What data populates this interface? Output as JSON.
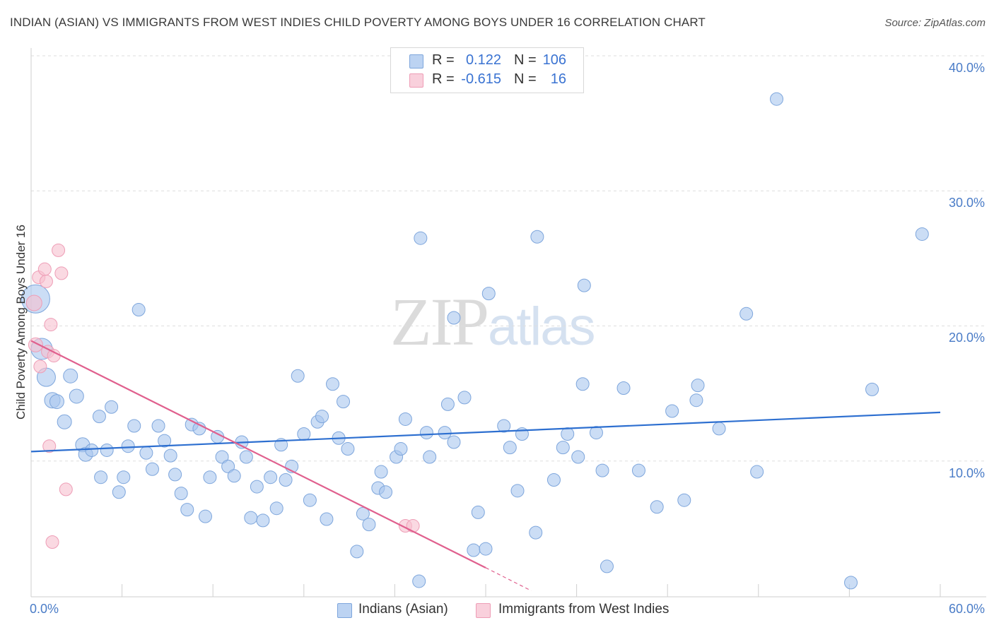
{
  "title": "INDIAN (ASIAN) VS IMMIGRANTS FROM WEST INDIES CHILD POVERTY AMONG BOYS UNDER 16 CORRELATION CHART",
  "source": "Source: ZipAtlas.com",
  "watermark": {
    "zip": "ZIP",
    "atlas": "atlas"
  },
  "colors": {
    "blue_fill": "#a8c6ee",
    "blue_stroke": "#7ea6dc",
    "blue_line": "#2d6fd0",
    "pink_fill": "#f6bfcf",
    "pink_stroke": "#ee9db6",
    "pink_line": "#e0608e",
    "grid": "#dedede",
    "tick_text": "#4a7cc7"
  },
  "legend": {
    "r_label": "R =",
    "n_label": "N =",
    "blue": {
      "r": "0.122",
      "n": "106"
    },
    "pink": {
      "r": "-0.615",
      "n": "16"
    }
  },
  "chart_data": {
    "type": "scatter",
    "title": "INDIAN (ASIAN) VS IMMIGRANTS FROM WEST INDIES CHILD POVERTY AMONG BOYS UNDER 16 CORRELATION CHART",
    "xlabel": "",
    "ylabel": "Child Poverty Among Boys Under 16",
    "xlim": [
      0,
      60
    ],
    "ylim": [
      0,
      40
    ],
    "x_tick_labels": [
      "0.0%",
      "60.0%"
    ],
    "y_ticks": [
      10,
      20,
      30,
      40
    ],
    "y_tick_labels": [
      "10.0%",
      "20.0%",
      "30.0%",
      "40.0%"
    ],
    "series": [
      {
        "name": "Indians (Asian)",
        "color": "#a8c6ee",
        "r": 0.122,
        "n": 106,
        "trend": {
          "x0": 0,
          "y0": 10.7,
          "x1": 60,
          "y1": 13.6
        },
        "points": [
          [
            0.3,
            22.0,
            20
          ],
          [
            0.7,
            18.3,
            15
          ],
          [
            1.0,
            16.2,
            13
          ],
          [
            1.4,
            14.5,
            11
          ],
          [
            1.7,
            14.4,
            10
          ],
          [
            2.2,
            12.9,
            10
          ],
          [
            2.6,
            16.3,
            10
          ],
          [
            3.0,
            14.8,
            10
          ],
          [
            3.4,
            11.2,
            10
          ],
          [
            3.6,
            10.5,
            10
          ],
          [
            4.0,
            10.8,
            9
          ],
          [
            4.5,
            13.3,
            9
          ],
          [
            4.6,
            8.8,
            9
          ],
          [
            5.0,
            10.8,
            9
          ],
          [
            5.3,
            14.0,
            9
          ],
          [
            5.8,
            7.7,
            9
          ],
          [
            6.1,
            8.8,
            9
          ],
          [
            6.4,
            11.1,
            9
          ],
          [
            6.8,
            12.6,
            9
          ],
          [
            7.1,
            21.2,
            9
          ],
          [
            7.6,
            10.6,
            9
          ],
          [
            8.0,
            9.4,
            9
          ],
          [
            8.4,
            12.6,
            9
          ],
          [
            8.8,
            11.5,
            9
          ],
          [
            9.2,
            10.4,
            9
          ],
          [
            9.5,
            9.0,
            9
          ],
          [
            9.9,
            7.6,
            9
          ],
          [
            10.3,
            6.4,
            9
          ],
          [
            10.6,
            12.7,
            9
          ],
          [
            11.1,
            12.4,
            9
          ],
          [
            11.5,
            5.9,
            9
          ],
          [
            11.8,
            8.8,
            9
          ],
          [
            12.3,
            11.8,
            9
          ],
          [
            12.6,
            10.3,
            9
          ],
          [
            13.0,
            9.6,
            9
          ],
          [
            13.4,
            8.9,
            9
          ],
          [
            13.9,
            11.4,
            9
          ],
          [
            14.2,
            10.3,
            9
          ],
          [
            14.5,
            5.8,
            9
          ],
          [
            14.9,
            8.1,
            9
          ],
          [
            15.3,
            5.6,
            9
          ],
          [
            15.8,
            8.8,
            9
          ],
          [
            16.2,
            6.5,
            9
          ],
          [
            16.5,
            11.2,
            9
          ],
          [
            16.8,
            8.6,
            9
          ],
          [
            17.2,
            9.6,
            9
          ],
          [
            17.6,
            16.3,
            9
          ],
          [
            18.0,
            12.0,
            9
          ],
          [
            18.4,
            7.1,
            9
          ],
          [
            18.9,
            12.9,
            9
          ],
          [
            19.2,
            13.3,
            9
          ],
          [
            19.5,
            5.7,
            9
          ],
          [
            19.9,
            15.7,
            9
          ],
          [
            20.3,
            11.7,
            9
          ],
          [
            20.6,
            14.4,
            9
          ],
          [
            20.9,
            10.9,
            9
          ],
          [
            21.5,
            3.3,
            9
          ],
          [
            21.9,
            6.1,
            9
          ],
          [
            22.3,
            5.3,
            9
          ],
          [
            22.9,
            8.0,
            9
          ],
          [
            23.1,
            9.2,
            9
          ],
          [
            23.4,
            7.7,
            9
          ],
          [
            24.1,
            10.3,
            9
          ],
          [
            24.4,
            10.9,
            9
          ],
          [
            24.7,
            13.1,
            9
          ],
          [
            25.6,
            1.1,
            9
          ],
          [
            25.7,
            26.5,
            9
          ],
          [
            26.1,
            12.1,
            9
          ],
          [
            26.3,
            10.3,
            9
          ],
          [
            27.3,
            12.1,
            9
          ],
          [
            27.5,
            14.2,
            9
          ],
          [
            27.9,
            11.4,
            9
          ],
          [
            27.9,
            20.6,
            9
          ],
          [
            28.6,
            14.7,
            9
          ],
          [
            29.2,
            3.4,
            9
          ],
          [
            29.5,
            6.2,
            9
          ],
          [
            30.0,
            3.5,
            9
          ],
          [
            30.2,
            22.4,
            9
          ],
          [
            31.2,
            12.6,
            9
          ],
          [
            31.6,
            11.0,
            9
          ],
          [
            32.1,
            7.8,
            9
          ],
          [
            32.4,
            12.0,
            9
          ],
          [
            33.3,
            4.7,
            9
          ],
          [
            33.4,
            26.6,
            9
          ],
          [
            34.5,
            8.6,
            9
          ],
          [
            35.1,
            11.0,
            9
          ],
          [
            35.4,
            12.0,
            9
          ],
          [
            36.1,
            10.3,
            9
          ],
          [
            36.4,
            15.7,
            9
          ],
          [
            36.5,
            23.0,
            9
          ],
          [
            37.3,
            12.1,
            9
          ],
          [
            37.7,
            9.3,
            9
          ],
          [
            38.0,
            2.2,
            9
          ],
          [
            39.1,
            15.4,
            9
          ],
          [
            40.1,
            9.3,
            9
          ],
          [
            41.3,
            6.6,
            9
          ],
          [
            42.3,
            13.7,
            9
          ],
          [
            43.1,
            7.1,
            9
          ],
          [
            43.9,
            14.5,
            9
          ],
          [
            44.0,
            15.6,
            9
          ],
          [
            45.4,
            12.4,
            9
          ],
          [
            47.2,
            20.9,
            9
          ],
          [
            47.9,
            9.2,
            9
          ],
          [
            49.2,
            36.8,
            9
          ],
          [
            54.1,
            1.0,
            9
          ],
          [
            55.5,
            15.3,
            9
          ],
          [
            58.8,
            26.8,
            9
          ]
        ]
      },
      {
        "name": "Immigrants from West Indies",
        "color": "#f6bfcf",
        "r": -0.615,
        "n": 16,
        "trend": {
          "x0": 0,
          "y0": 18.9,
          "x1": 30,
          "y1": 2.1
        },
        "trend_dashed": {
          "x0": 30,
          "y0": 2.1,
          "x1": 33,
          "y1": 0.4
        },
        "points": [
          [
            0.2,
            21.7,
            11
          ],
          [
            0.3,
            18.6,
            10
          ],
          [
            0.5,
            23.6,
            9
          ],
          [
            0.6,
            17.0,
            9
          ],
          [
            0.9,
            24.2,
            9
          ],
          [
            1.0,
            23.3,
            9
          ],
          [
            1.1,
            18.1,
            9
          ],
          [
            1.2,
            11.1,
            9
          ],
          [
            1.3,
            20.1,
            9
          ],
          [
            1.4,
            4.0,
            9
          ],
          [
            1.5,
            17.8,
            9
          ],
          [
            1.8,
            25.6,
            9
          ],
          [
            2.0,
            23.9,
            9
          ],
          [
            2.3,
            7.9,
            9
          ],
          [
            24.7,
            5.2,
            9
          ],
          [
            25.2,
            5.2,
            9
          ]
        ]
      }
    ]
  },
  "bottom_legend": {
    "blue_label": "Indians (Asian)",
    "pink_label": "Immigrants from West Indies"
  }
}
